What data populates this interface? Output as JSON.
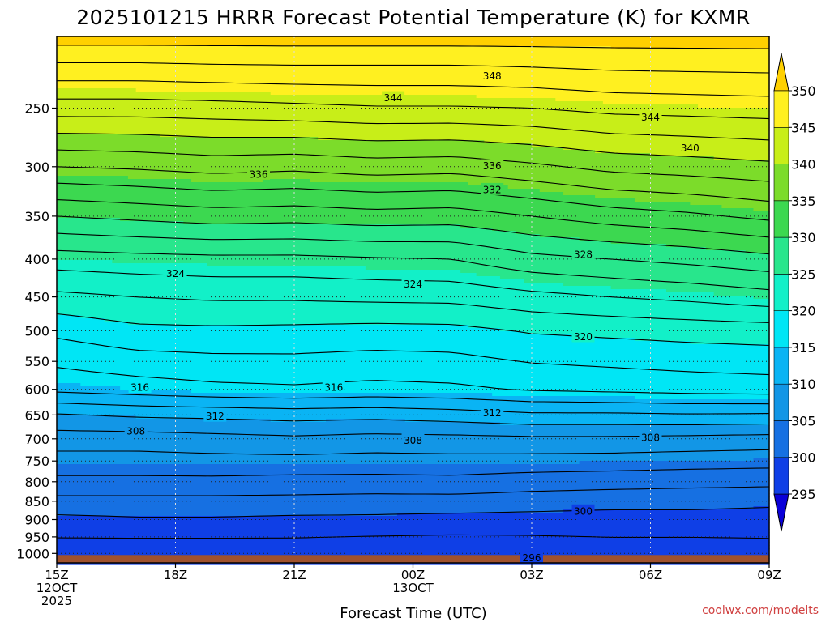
{
  "chart_data": {
    "type": "heatmap",
    "title": "2025101215 HRRR Forecast Potential Temperature (K) for KXMR",
    "xlabel": "Forecast Time (UTC)",
    "ylabel": "",
    "x_hours_range": [
      0,
      18
    ],
    "pressure_range_hpa": [
      200,
      1030
    ],
    "x_ticks": [
      {
        "hour": 0,
        "lines": [
          "15Z",
          "12OCT",
          "2025"
        ]
      },
      {
        "hour": 3,
        "lines": [
          "18Z"
        ]
      },
      {
        "hour": 6,
        "lines": [
          "21Z"
        ]
      },
      {
        "hour": 9,
        "lines": [
          "00Z",
          "13OCT"
        ]
      },
      {
        "hour": 12,
        "lines": [
          "03Z"
        ]
      },
      {
        "hour": 15,
        "lines": [
          "06Z"
        ]
      },
      {
        "hour": 18,
        "lines": [
          "09Z"
        ]
      }
    ],
    "y_ticks": [
      "250",
      "300",
      "350",
      "400",
      "450",
      "500",
      "550",
      "600",
      "650",
      "700",
      "750",
      "800",
      "850",
      "900",
      "950",
      "1000"
    ],
    "colorbar": {
      "levels": [
        "295",
        "300",
        "305",
        "310",
        "315",
        "320",
        "325",
        "330",
        "335",
        "340",
        "345",
        "350"
      ],
      "colors": [
        "#0a00d8",
        "#0f3fe6",
        "#1670e2",
        "#1296e6",
        "#0ab4f4",
        "#00e6f5",
        "#12f0c8",
        "#28e68c",
        "#3cd850",
        "#7cdc2a",
        "#c8ee18",
        "#fff020",
        "#ffd000"
      ],
      "extend": "both"
    },
    "contour_interval_K": 2,
    "profiles": [
      {
        "hour": 0,
        "sfc": 297.0,
        "breaks": [
          [
            1000,
            297.0
          ],
          [
            960,
            297.8
          ],
          [
            900,
            299.5
          ],
          [
            860,
            301.0
          ],
          [
            800,
            303.5
          ],
          [
            700,
            307.0
          ],
          [
            650,
            309.8
          ],
          [
            600,
            314.5
          ],
          [
            500,
            318.5
          ],
          [
            450,
            321.5
          ],
          [
            400,
            325.0
          ],
          [
            350,
            330.0
          ],
          [
            300,
            336.0
          ],
          [
            250,
            343.0
          ],
          [
            220,
            347.5
          ],
          [
            200,
            351.0
          ]
        ]
      },
      {
        "hour": 2,
        "sfc": 296.5,
        "breaks": [
          [
            1000,
            296.5
          ],
          [
            960,
            297.8
          ],
          [
            900,
            299.8
          ],
          [
            860,
            301.0
          ],
          [
            800,
            303.5
          ],
          [
            700,
            307.0
          ],
          [
            650,
            310.3
          ],
          [
            600,
            315.0
          ],
          [
            500,
            319.5
          ],
          [
            450,
            322.0
          ],
          [
            400,
            325.3
          ],
          [
            350,
            330.5
          ],
          [
            300,
            336.3
          ],
          [
            250,
            343.0
          ],
          [
            220,
            347.5
          ],
          [
            200,
            351.0
          ]
        ]
      },
      {
        "hour": 4,
        "sfc": 297.2,
        "breaks": [
          [
            1000,
            297.2
          ],
          [
            960,
            297.8
          ],
          [
            900,
            299.8
          ],
          [
            860,
            301.0
          ],
          [
            800,
            303.5
          ],
          [
            700,
            307.3
          ],
          [
            650,
            310.5
          ],
          [
            600,
            315.5
          ],
          [
            500,
            319.6
          ],
          [
            450,
            322.3
          ],
          [
            400,
            325.5
          ],
          [
            350,
            331.0
          ],
          [
            300,
            336.8
          ],
          [
            250,
            343.2
          ],
          [
            220,
            347.7
          ],
          [
            200,
            351.0
          ]
        ]
      },
      {
        "hour": 6,
        "sfc": 297.8,
        "breaks": [
          [
            1000,
            297.8
          ],
          [
            960,
            297.8
          ],
          [
            900,
            299.6
          ],
          [
            860,
            301.0
          ],
          [
            800,
            303.3
          ],
          [
            700,
            307.6
          ],
          [
            650,
            310.8
          ],
          [
            600,
            315.7
          ],
          [
            500,
            319.5
          ],
          [
            450,
            322.3
          ],
          [
            400,
            325.5
          ],
          [
            350,
            330.8
          ],
          [
            300,
            336.5
          ],
          [
            250,
            343.5
          ],
          [
            220,
            347.8
          ],
          [
            200,
            351.0
          ]
        ]
      },
      {
        "hour": 8,
        "sfc": 297.4,
        "breaks": [
          [
            1000,
            297.4
          ],
          [
            960,
            297.6
          ],
          [
            900,
            299.6
          ],
          [
            860,
            300.8
          ],
          [
            800,
            303.3
          ],
          [
            700,
            307.3
          ],
          [
            650,
            310.6
          ],
          [
            600,
            315.4
          ],
          [
            500,
            319.3
          ],
          [
            450,
            322.5
          ],
          [
            400,
            325.8
          ],
          [
            350,
            331.2
          ],
          [
            300,
            337.0
          ],
          [
            250,
            343.8
          ],
          [
            220,
            347.8
          ],
          [
            200,
            351.0
          ]
        ]
      },
      {
        "hour": 10,
        "sfc": 297.0,
        "breaks": [
          [
            1000,
            297.0
          ],
          [
            960,
            297.5
          ],
          [
            900,
            299.4
          ],
          [
            860,
            300.8
          ],
          [
            800,
            303.4
          ],
          [
            700,
            307.4
          ],
          [
            650,
            311.0
          ],
          [
            600,
            315.6
          ],
          [
            500,
            319.4
          ],
          [
            450,
            322.6
          ],
          [
            400,
            326.0
          ],
          [
            350,
            331.0
          ],
          [
            300,
            336.8
          ],
          [
            250,
            343.8
          ],
          [
            220,
            347.8
          ],
          [
            200,
            351.0
          ]
        ]
      },
      {
        "hour": 12,
        "sfc": 297.6,
        "breaks": [
          [
            1000,
            297.6
          ],
          [
            960,
            297.6
          ],
          [
            900,
            299.3
          ],
          [
            860,
            300.6
          ],
          [
            800,
            303.0
          ],
          [
            700,
            307.6
          ],
          [
            650,
            311.6
          ],
          [
            600,
            316.2
          ],
          [
            500,
            320.2
          ],
          [
            450,
            323.4
          ],
          [
            400,
            327.4
          ],
          [
            350,
            332.0
          ],
          [
            300,
            337.6
          ],
          [
            250,
            344.0
          ],
          [
            220,
            348.0
          ],
          [
            200,
            351.0
          ]
        ]
      },
      {
        "hour": 14,
        "sfc": 298.0,
        "breaks": [
          [
            1000,
            298.0
          ],
          [
            960,
            297.8
          ],
          [
            900,
            299.2
          ],
          [
            860,
            300.4
          ],
          [
            800,
            302.8
          ],
          [
            700,
            307.6
          ],
          [
            650,
            311.6
          ],
          [
            600,
            316.5
          ],
          [
            500,
            320.5
          ],
          [
            450,
            324.0
          ],
          [
            400,
            328.0
          ],
          [
            350,
            333.0
          ],
          [
            300,
            338.6
          ],
          [
            250,
            344.6
          ],
          [
            220,
            348.3
          ],
          [
            200,
            351.0
          ]
        ]
      },
      {
        "hour": 16,
        "sfc": 298.0,
        "breaks": [
          [
            1000,
            298.0
          ],
          [
            960,
            297.8
          ],
          [
            900,
            299.2
          ],
          [
            860,
            300.4
          ],
          [
            800,
            302.6
          ],
          [
            700,
            307.4
          ],
          [
            650,
            311.8
          ],
          [
            600,
            316.8
          ],
          [
            500,
            320.8
          ],
          [
            450,
            324.5
          ],
          [
            400,
            328.6
          ],
          [
            350,
            333.6
          ],
          [
            300,
            339.0
          ],
          [
            250,
            344.8
          ],
          [
            220,
            348.4
          ],
          [
            200,
            351.0
          ]
        ]
      },
      {
        "hour": 18,
        "sfc": 298.5,
        "breaks": [
          [
            1000,
            298.5
          ],
          [
            960,
            297.9
          ],
          [
            900,
            299.0
          ],
          [
            860,
            300.2
          ],
          [
            800,
            302.5
          ],
          [
            700,
            307.2
          ],
          [
            650,
            311.7
          ],
          [
            600,
            317.0
          ],
          [
            500,
            321.0
          ],
          [
            450,
            325.2
          ],
          [
            400,
            329.4
          ],
          [
            350,
            334.5
          ],
          [
            300,
            339.5
          ],
          [
            250,
            345.0
          ],
          [
            220,
            348.5
          ],
          [
            200,
            351.0
          ]
        ]
      }
    ],
    "contour_labels": [
      {
        "value": "348",
        "hour": 11.0,
        "pressure": 226
      },
      {
        "value": "344",
        "hour": 8.5,
        "pressure": 242
      },
      {
        "value": "344",
        "hour": 15.0,
        "pressure": 257
      },
      {
        "value": "340",
        "hour": 16.0,
        "pressure": 283
      },
      {
        "value": "336",
        "hour": 5.1,
        "pressure": 307
      },
      {
        "value": "336",
        "hour": 11.0,
        "pressure": 299
      },
      {
        "value": "332",
        "hour": 11.0,
        "pressure": 322
      },
      {
        "value": "328",
        "hour": 13.3,
        "pressure": 394
      },
      {
        "value": "324",
        "hour": 3.0,
        "pressure": 418
      },
      {
        "value": "324",
        "hour": 9.0,
        "pressure": 432
      },
      {
        "value": "320",
        "hour": 13.3,
        "pressure": 509
      },
      {
        "value": "316",
        "hour": 2.1,
        "pressure": 596
      },
      {
        "value": "316",
        "hour": 7.0,
        "pressure": 596
      },
      {
        "value": "312",
        "hour": 4.0,
        "pressure": 652
      },
      {
        "value": "312",
        "hour": 11.0,
        "pressure": 645
      },
      {
        "value": "308",
        "hour": 2.0,
        "pressure": 683
      },
      {
        "value": "308",
        "hour": 9.0,
        "pressure": 703
      },
      {
        "value": "308",
        "hour": 15.0,
        "pressure": 697
      },
      {
        "value": "300",
        "hour": 13.3,
        "pressure": 876
      },
      {
        "value": "296",
        "hour": 12.0,
        "pressure": 1013
      }
    ],
    "ground_color": "#a0522d",
    "ground_pressure_hpa": 1005
  },
  "credit": "coolwx.com/modelts"
}
